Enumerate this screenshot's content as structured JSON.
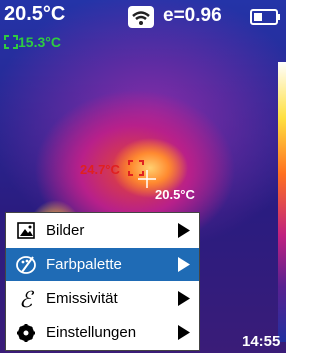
{
  "status_bar": {
    "temperature": "20.5°C",
    "min_temperature": "15.3°C",
    "emissivity": "e=0.96"
  },
  "image": {
    "hotspot_temperature": "24.7°C",
    "center_temperature": "20.5°C"
  },
  "menu": {
    "items": [
      {
        "label": "Bilder"
      },
      {
        "label": "Farbpalette"
      },
      {
        "label": "Emissivität"
      },
      {
        "label": "Einstellungen"
      }
    ],
    "selected": 1
  },
  "time": "14:55"
}
